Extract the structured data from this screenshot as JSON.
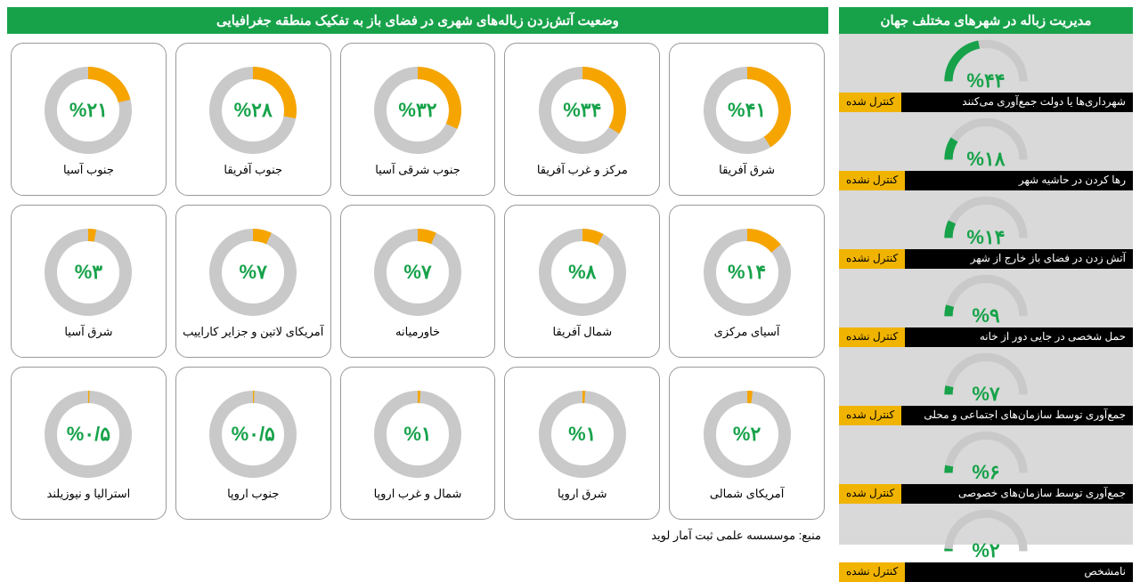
{
  "colors": {
    "brand_green": "#17a24a",
    "highlight": "#f6a500",
    "track": "#c9c9c9",
    "card_border": "#999999",
    "right_bg": "#d9d9d9",
    "black": "#000000",
    "white": "#ffffff"
  },
  "right_panel": {
    "title": "مدیریت زباله در شهرهای مختلف جهان",
    "gauge": {
      "track_color": "#c9c9c9",
      "value_color": "#17a24a",
      "stroke_width": 10
    },
    "items": [
      {
        "value": 44,
        "display": "%۴۴",
        "label": "شهرداری‌ها یا دولت جمع‌آوری می‌کنند",
        "status": "کنترل شده"
      },
      {
        "value": 18,
        "display": "%۱۸",
        "label": "رها کردن در حاشیه شهر",
        "status": "کنترل نشده"
      },
      {
        "value": 14,
        "display": "%۱۴",
        "label": "آتش زدن در فضای باز خارج از شهر",
        "status": "کنترل نشده"
      },
      {
        "value": 9,
        "display": "%۹",
        "label": "حمل شخصی در جایی دور از خانه",
        "status": "کنترل نشده"
      },
      {
        "value": 7,
        "display": "%۷",
        "label": "جمع‌آوری توسط سازمان‌های اجتماعی و محلی",
        "status": "کنترل شده"
      },
      {
        "value": 6,
        "display": "%۶",
        "label": "جمع‌آوری توسط سازمان‌های خصوصی",
        "status": "کنترل شده"
      },
      {
        "value": 2,
        "display": "%۲",
        "label": "نامشخص",
        "status": "کنترل نشده"
      }
    ]
  },
  "left_panel": {
    "title": "وضعیت آتش‌زدن زباله‌های شهری در فضای باز به تفکیک منطقه جغرافیایی",
    "donut": {
      "track_color": "#c9c9c9",
      "value_color": "#f6a500",
      "stroke_width": 14,
      "text_color": "#17a24a"
    },
    "items": [
      {
        "value": 41,
        "display": "%۴۱",
        "label": "شرق آفریقا"
      },
      {
        "value": 34,
        "display": "%۳۴",
        "label": "مرکز و غرب آفریقا"
      },
      {
        "value": 32,
        "display": "%۳۲",
        "label": "جنوب شرقی آسیا"
      },
      {
        "value": 28,
        "display": "%۲۸",
        "label": "جنوب آفریقا"
      },
      {
        "value": 21,
        "display": "%۲۱",
        "label": "جنوب آسیا"
      },
      {
        "value": 14,
        "display": "%۱۴",
        "label": "آسیای مرکزی"
      },
      {
        "value": 8,
        "display": "%۸",
        "label": "شمال آفریقا"
      },
      {
        "value": 7,
        "display": "%۷",
        "label": "خاورمیانه"
      },
      {
        "value": 7,
        "display": "%۷",
        "label": "آمریکای لاتین و جزایر کاراییب"
      },
      {
        "value": 3,
        "display": "%۳",
        "label": "شرق آسیا"
      },
      {
        "value": 2,
        "display": "%۲",
        "label": "آمریکای شمالی"
      },
      {
        "value": 1,
        "display": "%۱",
        "label": "شرق اروپا"
      },
      {
        "value": 1,
        "display": "%۱",
        "label": "شمال و غرب اروپا"
      },
      {
        "value": 0.5,
        "display": "%۰/۵",
        "label": "جنوب اروپا"
      },
      {
        "value": 0.5,
        "display": "%۰/۵",
        "label": "استرالیا و نیوزیلند"
      }
    ]
  },
  "source": "منبع: موسسسه علمی ثبت آمار لوید"
}
